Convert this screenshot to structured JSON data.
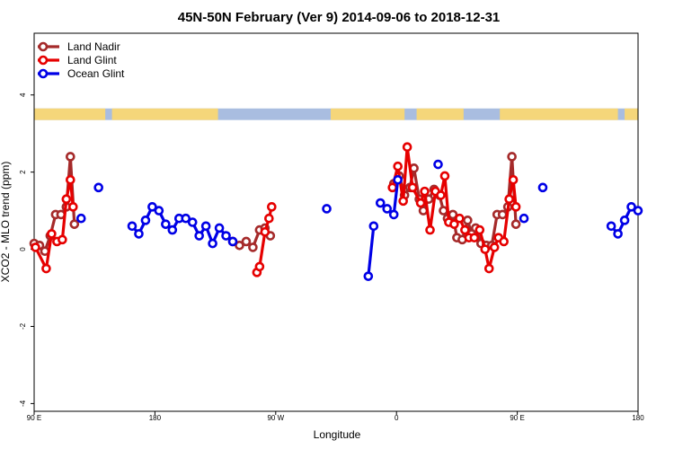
{
  "chart_data": {
    "type": "line",
    "title": "45N-50N February (Ver 9)   2014-09-06 to 2018-12-31",
    "xlabel": "Longitude",
    "ylabel": "XCO2 - MLO trend (ppm)",
    "xlim": [
      90,
      540
    ],
    "ylim": [
      -4.2,
      5.6
    ],
    "x_ticks": [
      {
        "value": 90,
        "label": "90 E"
      },
      {
        "value": 180,
        "label": "180"
      },
      {
        "value": 270,
        "label": "90 W"
      },
      {
        "value": 360,
        "label": "0"
      },
      {
        "value": 450,
        "label": "90 E"
      },
      {
        "value": 540,
        "label": "180"
      }
    ],
    "y_ticks": [
      {
        "value": -4,
        "label": "-4"
      },
      {
        "value": -2,
        "label": "-2"
      },
      {
        "value": 0,
        "label": "0"
      },
      {
        "value": 2,
        "label": "2"
      },
      {
        "value": 4,
        "label": "4"
      }
    ],
    "legend_position": "top-left",
    "land_strip": {
      "y_range": [
        3.35,
        3.65
      ],
      "land_color": "#f5d67a",
      "ocean_color": "#a9bde0",
      "land_ranges": [
        [
          90,
          143
        ],
        [
          148,
          227
        ],
        [
          311,
          366
        ],
        [
          375,
          410
        ],
        [
          437,
          525
        ],
        [
          530,
          540
        ]
      ]
    },
    "series": [
      {
        "name": "Land Nadir",
        "color": "#a52a2a",
        "segments": [
          [
            [
              90,
              0.15
            ],
            [
              94,
              0.1
            ],
            [
              98,
              -0.05
            ],
            [
              102,
              0.35
            ],
            [
              106,
              0.9
            ],
            [
              110,
              0.9
            ],
            [
              114,
              1.1
            ],
            [
              117,
              2.4
            ],
            [
              120,
              0.65
            ]
          ],
          [
            [
              238,
              0.2
            ],
            [
              243,
              0.1
            ],
            [
              248,
              0.2
            ],
            [
              253,
              0.05
            ],
            [
              258,
              0.5
            ],
            [
              262,
              0.55
            ],
            [
              266,
              0.35
            ]
          ],
          [
            [
              358,
              1.7
            ],
            [
              362,
              1.9
            ],
            [
              366,
              1.4
            ],
            [
              370,
              1.6
            ],
            [
              373,
              2.1
            ],
            [
              377,
              1.3
            ],
            [
              380,
              1.0
            ],
            [
              384,
              1.3
            ],
            [
              388,
              1.55
            ],
            [
              392,
              1.4
            ],
            [
              395,
              1.0
            ],
            [
              398,
              0.8
            ],
            [
              402,
              0.9
            ],
            [
              405,
              0.3
            ],
            [
              409,
              0.25
            ],
            [
              413,
              0.75
            ],
            [
              416,
              0.4
            ],
            [
              419,
              0.55
            ],
            [
              423,
              0.15
            ],
            [
              427,
              0.1
            ],
            [
              431,
              0.1
            ],
            [
              435,
              0.9
            ],
            [
              439,
              0.9
            ],
            [
              443,
              1.1
            ],
            [
              446,
              2.4
            ],
            [
              449,
              0.65
            ]
          ]
        ]
      },
      {
        "name": "Land Glint",
        "color": "#e60000",
        "segments": [
          [
            [
              91,
              0.05
            ],
            [
              99,
              -0.5
            ],
            [
              103,
              0.4
            ],
            [
              107,
              0.2
            ],
            [
              111,
              0.25
            ],
            [
              114,
              1.3
            ],
            [
              117,
              1.8
            ],
            [
              119,
              1.1
            ]
          ],
          [
            [
              256,
              -0.6
            ],
            [
              258,
              -0.45
            ],
            [
              262,
              0.45
            ],
            [
              265,
              0.8
            ],
            [
              267,
              1.1
            ]
          ],
          [
            [
              357,
              1.6
            ],
            [
              361,
              2.15
            ],
            [
              365,
              1.25
            ],
            [
              368,
              2.65
            ],
            [
              372,
              1.6
            ],
            [
              378,
              1.2
            ],
            [
              381,
              1.5
            ],
            [
              385,
              0.5
            ],
            [
              389,
              1.5
            ],
            [
              393,
              1.4
            ],
            [
              396,
              1.9
            ],
            [
              399,
              0.7
            ],
            [
              403,
              0.65
            ],
            [
              407,
              0.8
            ],
            [
              411,
              0.5
            ],
            [
              414,
              0.3
            ],
            [
              418,
              0.3
            ],
            [
              422,
              0.5
            ],
            [
              426,
              0.0
            ],
            [
              429,
              -0.5
            ],
            [
              433,
              0.05
            ],
            [
              436,
              0.3
            ],
            [
              440,
              0.2
            ],
            [
              444,
              1.3
            ],
            [
              447,
              1.8
            ],
            [
              449,
              1.1
            ]
          ]
        ]
      },
      {
        "name": "Ocean Glint",
        "color": "#0000e6",
        "segments": [
          [
            [
              125,
              0.8
            ]
          ],
          [
            [
              138,
              1.6
            ]
          ],
          [
            [
              163,
              0.6
            ],
            [
              168,
              0.4
            ],
            [
              173,
              0.75
            ],
            [
              178,
              1.1
            ],
            [
              183,
              1.0
            ],
            [
              188,
              0.65
            ],
            [
              193,
              0.5
            ],
            [
              198,
              0.8
            ],
            [
              203,
              0.8
            ],
            [
              208,
              0.7
            ],
            [
              213,
              0.35
            ],
            [
              218,
              0.6
            ],
            [
              223,
              0.15
            ],
            [
              228,
              0.55
            ],
            [
              233,
              0.35
            ],
            [
              238,
              0.2
            ]
          ],
          [
            [
              308,
              1.05
            ]
          ],
          [
            [
              339,
              -0.7
            ],
            [
              343,
              0.6
            ]
          ],
          [
            [
              348,
              1.2
            ],
            [
              353,
              1.05
            ],
            [
              358,
              0.9
            ],
            [
              361,
              1.8
            ]
          ],
          [
            [
              391,
              2.2
            ]
          ],
          [
            [
              455,
              0.8
            ]
          ],
          [
            [
              469,
              1.6
            ]
          ],
          [
            [
              520,
              0.6
            ],
            [
              525,
              0.4
            ],
            [
              530,
              0.75
            ],
            [
              535,
              1.1
            ],
            [
              540,
              1.0
            ]
          ]
        ]
      }
    ]
  }
}
